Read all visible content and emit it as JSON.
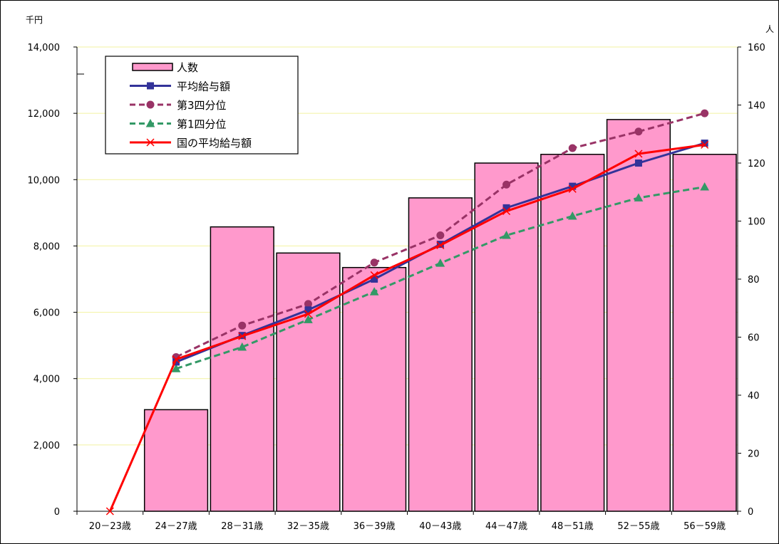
{
  "chart_data": {
    "type": "bar",
    "categories": [
      "20－23歳",
      "24－27歳",
      "28－31歳",
      "32－35歳",
      "36－39歳",
      "40－43歳",
      "44－47歳",
      "48－51歳",
      "52－55歳",
      "56－59歳"
    ],
    "left_axis": {
      "unit_label": "千円",
      "ylim": [
        0,
        14000
      ],
      "ticks": [
        0,
        2000,
        4000,
        6000,
        8000,
        10000,
        12000,
        14000
      ],
      "tick_labels": [
        "0",
        "2,000",
        "4,000",
        "6,000",
        "8,000",
        "10,000",
        "12,000",
        "14,000"
      ]
    },
    "right_axis": {
      "unit_label": "人",
      "ylim": [
        0,
        160
      ],
      "ticks": [
        0,
        20,
        40,
        60,
        80,
        100,
        120,
        140,
        160
      ],
      "tick_labels": [
        "0",
        "20",
        "40",
        "60",
        "80",
        "100",
        "120",
        "140",
        "160"
      ]
    },
    "grid": true,
    "legend_position": "top-left",
    "series": [
      {
        "name": "人数",
        "kind": "bar",
        "axis": "right",
        "color": "#ff99cc",
        "values": [
          0,
          35,
          98,
          89,
          84,
          108,
          120,
          123,
          135,
          123
        ]
      },
      {
        "name": "平均給与額",
        "kind": "line",
        "axis": "left",
        "color": "#333399",
        "marker": "square",
        "dash": "solid",
        "values": [
          null,
          4500,
          5300,
          6070,
          7000,
          8050,
          9150,
          9800,
          10500,
          11100
        ]
      },
      {
        "name": "第3四分位",
        "kind": "line",
        "axis": "left",
        "color": "#993366",
        "marker": "circle",
        "dash": "dashed",
        "values": [
          null,
          4650,
          5600,
          6250,
          7500,
          8320,
          9850,
          10950,
          11450,
          12000
        ]
      },
      {
        "name": "第1四分位",
        "kind": "line",
        "axis": "left",
        "color": "#339966",
        "marker": "triangle",
        "dash": "dashed",
        "values": [
          null,
          4300,
          4950,
          5780,
          6620,
          7480,
          8320,
          8900,
          9450,
          9780
        ]
      },
      {
        "name": "国の平均給与額",
        "kind": "line",
        "axis": "left",
        "color": "#ff0000",
        "marker": "x",
        "dash": "solid",
        "values": [
          0,
          4580,
          5280,
          5950,
          7120,
          8020,
          9050,
          9720,
          10780,
          11050
        ]
      }
    ]
  }
}
